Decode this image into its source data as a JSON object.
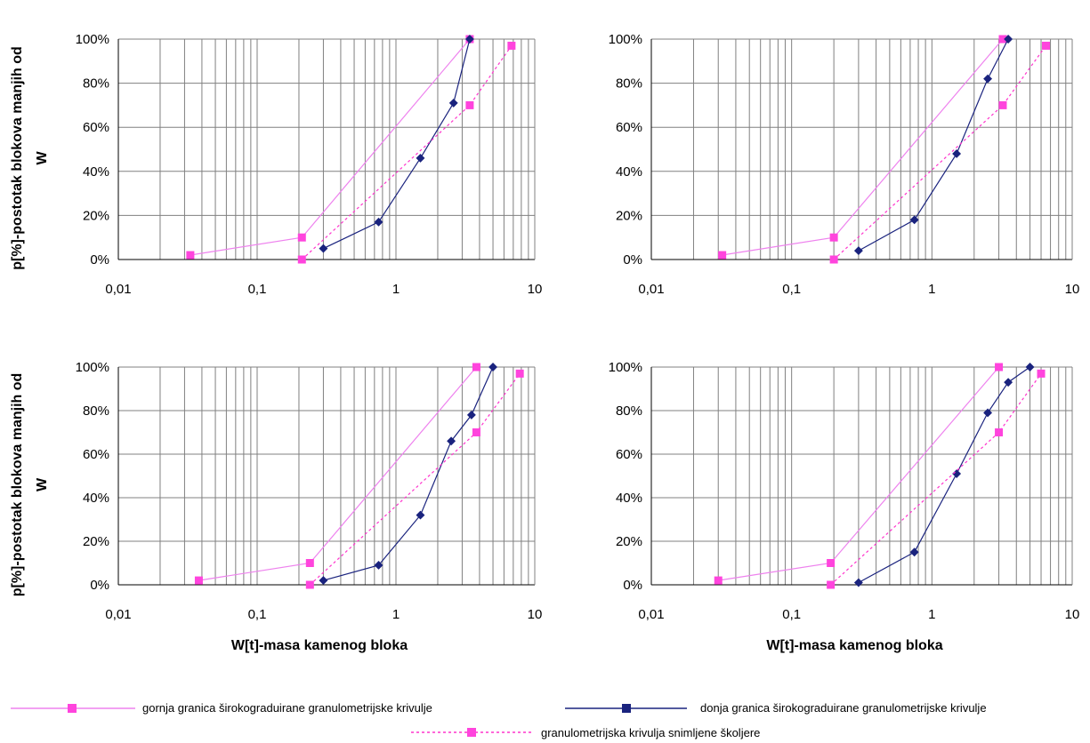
{
  "colors": {
    "upper": "#ee82ee",
    "lower": "#1a237e",
    "measured": "#ff33cc",
    "marker_pink": "#ff44dd",
    "grid": "#808080"
  },
  "y_axis_title": [
    "p[%]-postotak blokova manjih od",
    "W"
  ],
  "x_axis_title": "W[t]-masa kamenog bloka",
  "legend": {
    "upper": "gornja granica širokograduirane granulometrijske krivulje",
    "lower": "donja granica širokograduirane granulometrijske krivulje",
    "measured": "granulometrijska krivulja snimljene školjere"
  },
  "chart_data": [
    {
      "type": "line",
      "xscale": "log",
      "xlim": [
        0.01,
        10
      ],
      "ylim": [
        0,
        100
      ],
      "grid": true,
      "xticks": [
        "0,01",
        "0,1",
        "1",
        "10"
      ],
      "yticks": [
        "0%",
        "20%",
        "40%",
        "60%",
        "80%",
        "100%"
      ],
      "series": [
        {
          "key": "upper",
          "x": [
            0.033,
            0.21,
            3.4
          ],
          "y": [
            2,
            10,
            100
          ]
        },
        {
          "key": "lower",
          "x": [
            0.3,
            0.75,
            1.5,
            2.6,
            3.4
          ],
          "y": [
            5,
            17,
            46,
            71,
            100
          ]
        },
        {
          "key": "measured",
          "x": [
            0.21,
            3.4,
            6.8
          ],
          "y": [
            0,
            70,
            97
          ]
        }
      ]
    },
    {
      "type": "line",
      "xscale": "log",
      "xlim": [
        0.01,
        10
      ],
      "ylim": [
        0,
        100
      ],
      "grid": true,
      "xticks": [
        "0,01",
        "0,1",
        "1",
        "10"
      ],
      "yticks": [
        "0%",
        "20%",
        "40%",
        "60%",
        "80%",
        "100%"
      ],
      "series": [
        {
          "key": "upper",
          "x": [
            0.032,
            0.2,
            3.2
          ],
          "y": [
            2,
            10,
            100
          ]
        },
        {
          "key": "lower",
          "x": [
            0.3,
            0.75,
            1.5,
            2.5,
            3.5
          ],
          "y": [
            4,
            18,
            48,
            82,
            100
          ]
        },
        {
          "key": "measured",
          "x": [
            0.2,
            3.2,
            6.5
          ],
          "y": [
            0,
            70,
            97
          ]
        }
      ]
    },
    {
      "type": "line",
      "xscale": "log",
      "xlim": [
        0.01,
        10
      ],
      "ylim": [
        0,
        100
      ],
      "grid": true,
      "xticks": [
        "0,01",
        "0,1",
        "1",
        "10"
      ],
      "yticks": [
        "0%",
        "20%",
        "40%",
        "60%",
        "80%",
        "100%"
      ],
      "series": [
        {
          "key": "upper",
          "x": [
            0.038,
            0.24,
            3.8
          ],
          "y": [
            2,
            10,
            100
          ]
        },
        {
          "key": "lower",
          "x": [
            0.3,
            0.75,
            1.5,
            2.5,
            3.5,
            5.0
          ],
          "y": [
            2,
            9,
            32,
            66,
            78,
            100
          ]
        },
        {
          "key": "measured",
          "x": [
            0.24,
            3.8,
            7.8
          ],
          "y": [
            0,
            70,
            97
          ]
        }
      ]
    },
    {
      "type": "line",
      "xscale": "log",
      "xlim": [
        0.01,
        10
      ],
      "ylim": [
        0,
        100
      ],
      "grid": true,
      "xticks": [
        "0,01",
        "0,1",
        "1",
        "10"
      ],
      "yticks": [
        "0%",
        "20%",
        "40%",
        "60%",
        "80%",
        "100%"
      ],
      "series": [
        {
          "key": "upper",
          "x": [
            0.03,
            0.19,
            3.0
          ],
          "y": [
            2,
            10,
            100
          ]
        },
        {
          "key": "lower",
          "x": [
            0.3,
            0.75,
            1.5,
            2.5,
            3.5,
            5.0
          ],
          "y": [
            1,
            15,
            51,
            79,
            93,
            100
          ]
        },
        {
          "key": "measured",
          "x": [
            0.19,
            3.0,
            6.0
          ],
          "y": [
            0,
            70,
            97
          ]
        }
      ]
    }
  ]
}
